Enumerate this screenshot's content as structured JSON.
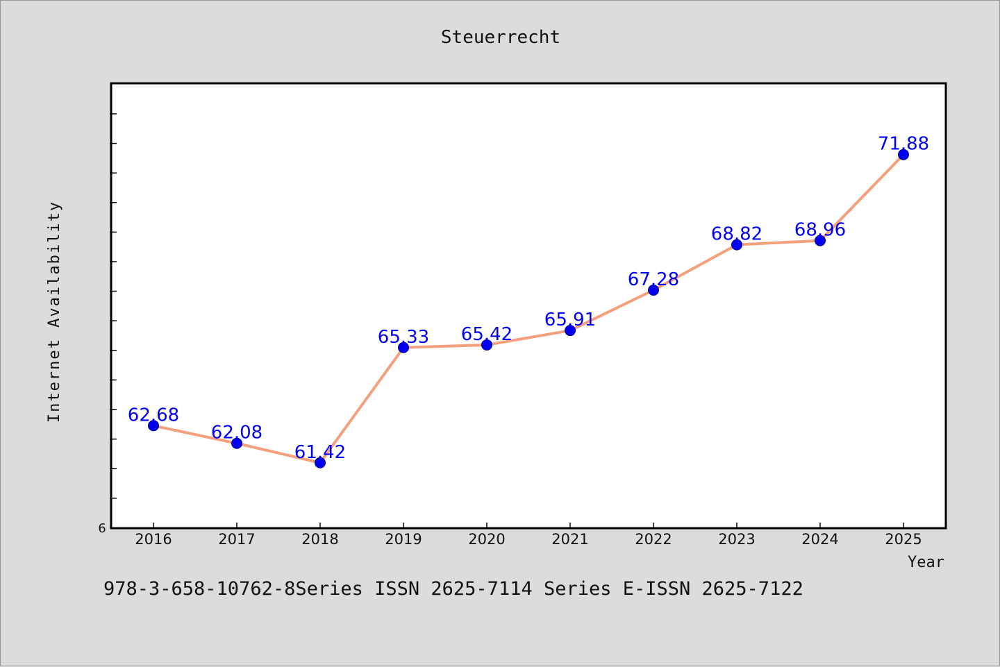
{
  "chart_data": {
    "type": "line",
    "title": "Steuerrecht",
    "xlabel": "Year",
    "ylabel": "Internet Availability",
    "categories": [
      "2016",
      "2017",
      "2018",
      "2019",
      "2020",
      "2021",
      "2022",
      "2023",
      "2024",
      "2025"
    ],
    "series": [
      {
        "values": [
          62.68,
          62.08,
          61.42,
          65.33,
          65.42,
          65.91,
          67.28,
          68.82,
          68.96,
          71.88
        ],
        "labels": [
          "62.68",
          "62.08",
          "61.42",
          "65.33",
          "65.42",
          "65.91",
          "67.28",
          "68.82",
          "68.96",
          "71.88"
        ]
      }
    ],
    "y_tick_labels": [
      "6"
    ],
    "ylim": [
      59.2,
      74.3
    ],
    "grid": false,
    "colors": {
      "line": "#f4a07c",
      "marker": "#0000ee",
      "label": "#0000ee"
    }
  },
  "footer": {
    "text": "978-3-658-10762-8Series ISSN 2625-7114 Series E-ISSN 2625-7122"
  }
}
